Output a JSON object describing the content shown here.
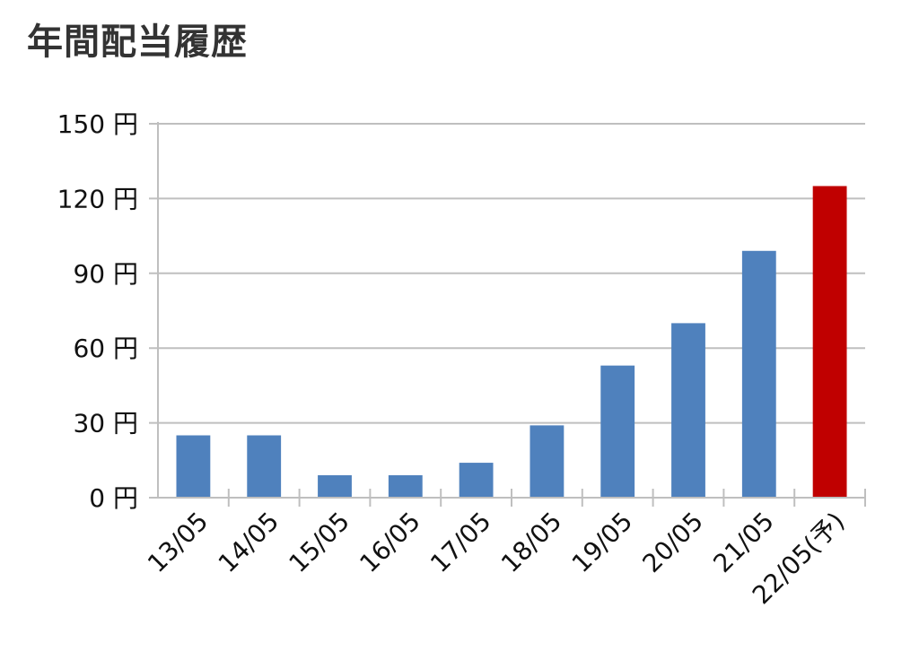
{
  "chart_data": {
    "type": "bar",
    "title": "年間配当履歴",
    "xlabel": "",
    "ylabel": "",
    "y_unit": "円",
    "ylim": [
      0,
      150
    ],
    "yticks": [
      0,
      30,
      60,
      90,
      120,
      150
    ],
    "grid": true,
    "legend": "none",
    "categories": [
      "13/05",
      "14/05",
      "15/05",
      "16/05",
      "17/05",
      "18/05",
      "19/05",
      "20/05",
      "21/05",
      "22/05(予)"
    ],
    "values": [
      25,
      25,
      9,
      9,
      14,
      29,
      53,
      70,
      99,
      125
    ],
    "colors": {
      "actual": "#4f81bd",
      "forecast": "#c00000",
      "grid": "#bfbfbf",
      "axis": "#bfbfbf",
      "text": "#111111"
    },
    "highlight_index": 9
  }
}
